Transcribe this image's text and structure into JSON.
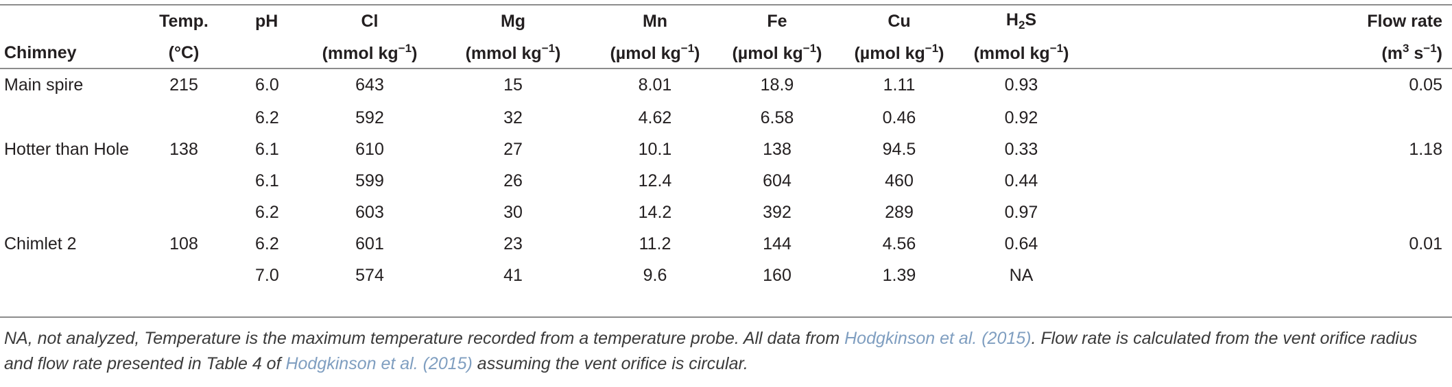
{
  "table": {
    "headers": {
      "chimney": "Chimney",
      "temp": [
        "Temp.",
        "(°C)"
      ],
      "ph": "pH",
      "cl": [
        "Cl",
        "(mmol kg",
        "−1",
        ")"
      ],
      "mg": [
        "Mg",
        "(mmol kg",
        "−1",
        ")"
      ],
      "mn": [
        "Mn",
        "(µmol kg",
        "−1",
        ")"
      ],
      "fe": [
        "Fe",
        "(µmol kg",
        "−1",
        ")"
      ],
      "cu": [
        "Cu",
        "(µmol kg",
        "−1",
        ")"
      ],
      "h2s": [
        "H",
        "2",
        "S",
        "(mmol kg",
        "−1",
        ")"
      ],
      "flow": [
        "Flow rate",
        "(m",
        "3",
        " s",
        "−1",
        ")"
      ]
    },
    "rows": [
      {
        "chimney": "Main spire",
        "temp": "215",
        "ph": "6.0",
        "cl": "643",
        "mg": "15",
        "mn": "8.01",
        "fe": "18.9",
        "cu": "1.11",
        "h2s": "0.93",
        "flow": "0.05"
      },
      {
        "chimney": "",
        "temp": "",
        "ph": "6.2",
        "cl": "592",
        "mg": "32",
        "mn": "4.62",
        "fe": "6.58",
        "cu": "0.46",
        "h2s": "0.92",
        "flow": ""
      },
      {
        "chimney": "Hotter than Hole",
        "temp": "138",
        "ph": "6.1",
        "cl": "610",
        "mg": "27",
        "mn": "10.1",
        "fe": "138",
        "cu": "94.5",
        "h2s": "0.33",
        "flow": "1.18"
      },
      {
        "chimney": "",
        "temp": "",
        "ph": "6.1",
        "cl": "599",
        "mg": "26",
        "mn": "12.4",
        "fe": "604",
        "cu": "460",
        "h2s": "0.44",
        "flow": ""
      },
      {
        "chimney": "",
        "temp": "",
        "ph": "6.2",
        "cl": "603",
        "mg": "30",
        "mn": "14.2",
        "fe": "392",
        "cu": "289",
        "h2s": "0.97",
        "flow": ""
      },
      {
        "chimney": "Chimlet 2",
        "temp": "108",
        "ph": "6.2",
        "cl": "601",
        "mg": "23",
        "mn": "11.2",
        "fe": "144",
        "cu": "4.56",
        "h2s": "0.64",
        "flow": "0.01"
      },
      {
        "chimney": "",
        "temp": "",
        "ph": "7.0",
        "cl": "574",
        "mg": "41",
        "mn": "9.6",
        "fe": "160",
        "cu": "1.39",
        "h2s": "NA",
        "flow": ""
      }
    ]
  },
  "footnote": {
    "part1": "NA, not analyzed, Temperature is the maximum temperature recorded from a temperature probe. All data from ",
    "link1": "Hodgkinson et al. (2015)",
    "part2": ". Flow rate is calculated from the vent orifice radius and flow rate presented in Table 4 of ",
    "link2": "Hodgkinson et al. (2015)",
    "part3": " assuming the vent orifice is circular."
  },
  "colors": {
    "text": "#231f20",
    "rule": "#8c8c8c",
    "link": "#7f9ec0"
  }
}
